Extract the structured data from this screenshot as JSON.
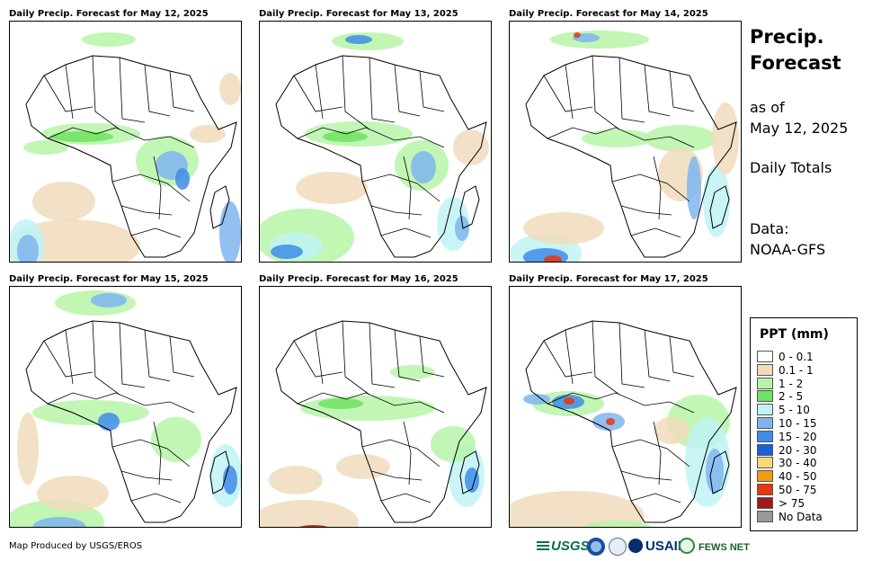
{
  "panels": [
    {
      "title": "Daily Precip. Forecast for May 12, 2025"
    },
    {
      "title": "Daily Precip. Forecast for May 13, 2025"
    },
    {
      "title": "Daily Precip. Forecast for May 14, 2025"
    },
    {
      "title": "Daily Precip. Forecast for May 15, 2025"
    },
    {
      "title": "Daily Precip. Forecast for May 16, 2025"
    },
    {
      "title": "Daily Precip. Forecast for May 17, 2025"
    }
  ],
  "sidebar": {
    "title_line1": "Precip.",
    "title_line2": "Forecast",
    "asof_line1": "as of",
    "asof_line2": "May 12, 2025",
    "period": "Daily Totals",
    "data_line1": "Data:",
    "data_line2": "NOAA-GFS"
  },
  "legend": {
    "title": "PPT (mm)",
    "items": [
      {
        "label": "0 - 0.1",
        "color": "#ffffff"
      },
      {
        "label": "0.1 - 1",
        "color": "#f0dcbc"
      },
      {
        "label": "1 - 2",
        "color": "#b6f5a8"
      },
      {
        "label": "2 - 5",
        "color": "#6ee35e"
      },
      {
        "label": "5 - 10",
        "color": "#bff3f4"
      },
      {
        "label": "10 - 15",
        "color": "#7fb5ef"
      },
      {
        "label": "15 - 20",
        "color": "#3f8ce8"
      },
      {
        "label": "20 - 30",
        "color": "#1a5fd6"
      },
      {
        "label": "30 - 40",
        "color": "#f5d97a"
      },
      {
        "label": "40 - 50",
        "color": "#f39c12"
      },
      {
        "label": "50 - 75",
        "color": "#e8360e"
      },
      {
        "label": "> 75",
        "color": "#9e1b1b"
      },
      {
        "label": "No Data",
        "color": "#999999"
      }
    ]
  },
  "footer": {
    "credit": "Map Produced by USGS/EROS",
    "logo_usgs": "USGS",
    "logo_usaid": "USAID",
    "logo_fews": "FEWS NET"
  }
}
